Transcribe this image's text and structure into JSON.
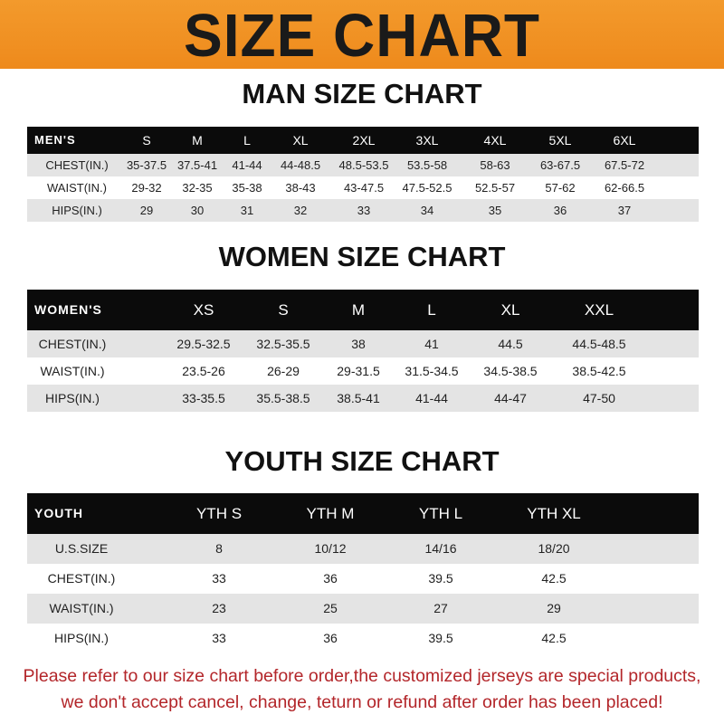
{
  "banner": {
    "title": "SIZE CHART",
    "color": "#f0901f"
  },
  "men": {
    "title": "MAN SIZE CHART",
    "header": [
      "MEN'S",
      "S",
      "M",
      "L",
      "XL",
      "2XL",
      "3XL",
      "4XL",
      "5XL",
      "6XL"
    ],
    "rows": [
      [
        "CHEST(IN.)",
        "35-37.5",
        "37.5-41",
        "41-44",
        "44-48.5",
        "48.5-53.5",
        "53.5-58",
        "58-63",
        "63-67.5",
        "67.5-72"
      ],
      [
        "WAIST(IN.)",
        "29-32",
        "32-35",
        "35-38",
        "38-43",
        "43-47.5",
        "47.5-52.5",
        "52.5-57",
        "57-62",
        "62-66.5"
      ],
      [
        "HIPS(IN.)",
        "29",
        "30",
        "31",
        "32",
        "33",
        "34",
        "35",
        "36",
        "37"
      ]
    ]
  },
  "women": {
    "title": "WOMEN SIZE CHART",
    "header": [
      "WOMEN'S",
      "XS",
      "S",
      "M",
      "L",
      "XL",
      "XXL"
    ],
    "rows": [
      [
        "CHEST(IN.)",
        "29.5-32.5",
        "32.5-35.5",
        "38",
        "41",
        "44.5",
        "44.5-48.5"
      ],
      [
        "WAIST(IN.)",
        "23.5-26",
        "26-29",
        "29-31.5",
        "31.5-34.5",
        "34.5-38.5",
        "38.5-42.5"
      ],
      [
        "HIPS(IN.)",
        "33-35.5",
        "35.5-38.5",
        "38.5-41",
        "41-44",
        "44-47",
        "47-50"
      ]
    ]
  },
  "youth": {
    "title": "YOUTH SIZE CHART",
    "header": [
      "YOUTH",
      "YTH S",
      "YTH M",
      "YTH L",
      "YTH XL"
    ],
    "rows": [
      [
        "U.S.SIZE",
        "8",
        "10/12",
        "14/16",
        "18/20"
      ],
      [
        "CHEST(IN.)",
        "33",
        "36",
        "39.5",
        "42.5"
      ],
      [
        "WAIST(IN.)",
        "23",
        "25",
        "27",
        "29"
      ],
      [
        "HIPS(IN.)",
        "33",
        "36",
        "39.5",
        "42.5"
      ]
    ]
  },
  "note": {
    "line1": "Please refer to our size chart before order,the customized jerseys are special products,",
    "line2": "we don't accept cancel, change, teturn or refund after order has been placed!",
    "color": "#b3262a"
  }
}
